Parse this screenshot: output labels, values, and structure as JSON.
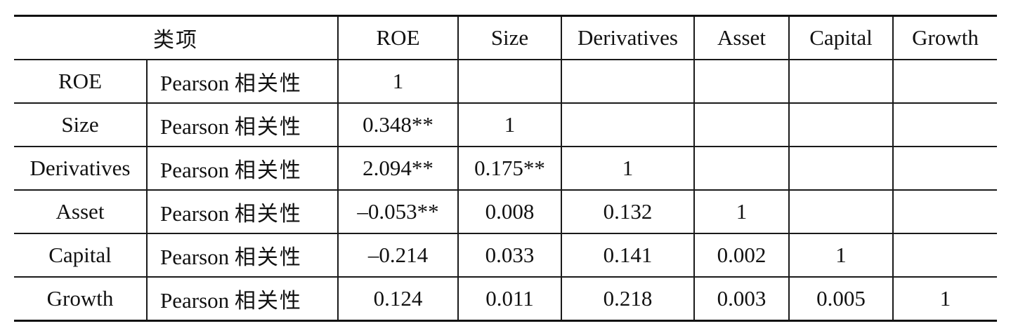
{
  "table": {
    "header": {
      "item_label": "类项",
      "columns": [
        "ROE",
        "Size",
        "Derivatives",
        "Asset",
        "Capital",
        "Growth"
      ]
    },
    "rows": [
      {
        "label": "ROE",
        "type_en": "Pearson",
        "type_zh": "相关性",
        "values": [
          "1",
          "",
          "",
          "",
          "",
          ""
        ]
      },
      {
        "label": "Size",
        "type_en": "Pearson",
        "type_zh": "相关性",
        "values": [
          "0.348**",
          "1",
          "",
          "",
          "",
          ""
        ]
      },
      {
        "label": "Derivatives",
        "type_en": "Pearson",
        "type_zh": "相关性",
        "values": [
          "2.094**",
          "0.175**",
          "1",
          "",
          "",
          ""
        ]
      },
      {
        "label": "Asset",
        "type_en": "Pearson",
        "type_zh": "相关性",
        "values": [
          "–0.053**",
          "0.008",
          "0.132",
          "1",
          "",
          ""
        ]
      },
      {
        "label": "Capital",
        "type_en": "Pearson",
        "type_zh": "相关性",
        "values": [
          "–0.214",
          "0.033",
          "0.141",
          "0.002",
          "1",
          ""
        ]
      },
      {
        "label": "Growth",
        "type_en": "Pearson",
        "type_zh": "相关性",
        "values": [
          "0.124",
          "0.011",
          "0.218",
          "0.003",
          "0.005",
          "1"
        ]
      }
    ]
  }
}
